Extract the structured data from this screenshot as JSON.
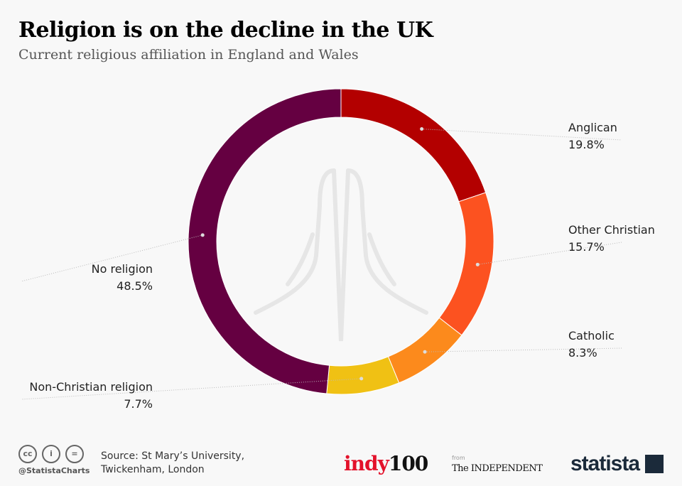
{
  "header": {
    "title": "Religion is on the decline in the UK",
    "subtitle": "Current religious affiliation in England and Wales"
  },
  "chart_data": {
    "type": "pie",
    "donut": true,
    "title": "Religion is on the decline in the UK",
    "subtitle": "Current religious affiliation in England and Wales",
    "unit": "%",
    "categories": [
      "Anglican",
      "Other Christian",
      "Catholic",
      "Non-Christian religion",
      "No religion"
    ],
    "values": [
      19.8,
      15.7,
      8.3,
      7.7,
      48.5
    ],
    "value_labels": [
      "19.8%",
      "15.7%",
      "8.3%",
      "7.7%",
      "48.5%"
    ],
    "colors": [
      "#b30000",
      "#fc5220",
      "#fc8a1c",
      "#f0c114",
      "#650041"
    ],
    "start": "top",
    "direction": "clockwise"
  },
  "footer": {
    "source_line1": "Source: St Mary’s University,",
    "source_line2": "Twickenham, London",
    "handle": "@StatistaCharts",
    "cc_icons": [
      "cc",
      "i",
      "="
    ],
    "partner_logo_a": "indy",
    "partner_logo_b": "100",
    "from": "from",
    "independent": "The INDEPENDENT",
    "brand": "statista"
  }
}
